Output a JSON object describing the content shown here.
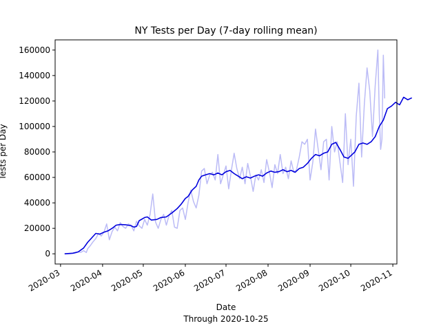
{
  "chart_data": {
    "type": "line",
    "title": "NY Tests per Day (7-day rolling mean)",
    "xlabel": "Date",
    "xlabel_note": "Through 2020-10-25",
    "ylabel": "Tests per Day",
    "xlim": [
      "2020-02-26",
      "2020-11-04"
    ],
    "ylim": [
      -8000,
      168000
    ],
    "x_ticks": [
      "2020-03",
      "2020-04",
      "2020-05",
      "2020-06",
      "2020-07",
      "2020-08",
      "2020-09",
      "2020-10",
      "2020-11"
    ],
    "y_ticks": [
      0,
      20000,
      40000,
      60000,
      80000,
      100000,
      120000,
      140000,
      160000
    ],
    "grid": false,
    "colors": {
      "daily": "#bbbbf6",
      "rolling": "#0000dd"
    },
    "series": [
      {
        "role": "daily",
        "points": [
          [
            "2020-03-04",
            0
          ],
          [
            "2020-03-08",
            100
          ],
          [
            "2020-03-12",
            600
          ],
          [
            "2020-03-14",
            1500
          ],
          [
            "2020-03-16",
            1200
          ],
          [
            "2020-03-18",
            2500
          ],
          [
            "2020-03-20",
            1000
          ],
          [
            "2020-03-21",
            4000
          ],
          [
            "2020-03-23",
            6500
          ],
          [
            "2020-03-25",
            9500
          ],
          [
            "2020-03-27",
            12000
          ],
          [
            "2020-03-29",
            16000
          ],
          [
            "2020-03-31",
            14000
          ],
          [
            "2020-04-02",
            17000
          ],
          [
            "2020-04-04",
            23500
          ],
          [
            "2020-04-06",
            11000
          ],
          [
            "2020-04-08",
            17500
          ],
          [
            "2020-04-10",
            21000
          ],
          [
            "2020-04-12",
            18000
          ],
          [
            "2020-04-14",
            24500
          ],
          [
            "2020-04-16",
            21500
          ],
          [
            "2020-04-18",
            20000
          ],
          [
            "2020-04-20",
            23500
          ],
          [
            "2020-04-22",
            22500
          ],
          [
            "2020-04-24",
            18000
          ],
          [
            "2020-04-26",
            25500
          ],
          [
            "2020-04-28",
            22000
          ],
          [
            "2020-04-30",
            20000
          ],
          [
            "2020-05-02",
            27000
          ],
          [
            "2020-05-04",
            22500
          ],
          [
            "2020-05-06",
            31000
          ],
          [
            "2020-05-08",
            47000
          ],
          [
            "2020-05-10",
            25000
          ],
          [
            "2020-05-12",
            20000
          ],
          [
            "2020-05-14",
            27000
          ],
          [
            "2020-05-16",
            31000
          ],
          [
            "2020-05-18",
            22500
          ],
          [
            "2020-05-20",
            30000
          ],
          [
            "2020-05-22",
            34000
          ],
          [
            "2020-05-24",
            21000
          ],
          [
            "2020-05-26",
            20000
          ],
          [
            "2020-05-28",
            34000
          ],
          [
            "2020-05-30",
            36000
          ],
          [
            "2020-06-01",
            27000
          ],
          [
            "2020-06-03",
            40000
          ],
          [
            "2020-06-05",
            50000
          ],
          [
            "2020-06-07",
            41000
          ],
          [
            "2020-06-09",
            36000
          ],
          [
            "2020-06-11",
            46000
          ],
          [
            "2020-06-13",
            65000
          ],
          [
            "2020-06-15",
            67000
          ],
          [
            "2020-06-17",
            55000
          ],
          [
            "2020-06-19",
            62000
          ],
          [
            "2020-06-21",
            64000
          ],
          [
            "2020-06-23",
            58000
          ],
          [
            "2020-06-25",
            78000
          ],
          [
            "2020-06-27",
            55000
          ],
          [
            "2020-06-29",
            62000
          ],
          [
            "2020-07-01",
            69000
          ],
          [
            "2020-07-03",
            51000
          ],
          [
            "2020-07-05",
            66000
          ],
          [
            "2020-07-07",
            79000
          ],
          [
            "2020-07-09",
            67000
          ],
          [
            "2020-07-11",
            59000
          ],
          [
            "2020-07-13",
            68000
          ],
          [
            "2020-07-15",
            55000
          ],
          [
            "2020-07-17",
            71000
          ],
          [
            "2020-07-19",
            61000
          ],
          [
            "2020-07-21",
            49000
          ],
          [
            "2020-07-23",
            62000
          ],
          [
            "2020-07-25",
            58000
          ],
          [
            "2020-07-27",
            66000
          ],
          [
            "2020-07-29",
            56000
          ],
          [
            "2020-07-31",
            74000
          ],
          [
            "2020-08-02",
            64000
          ],
          [
            "2020-08-04",
            52000
          ],
          [
            "2020-08-06",
            70000
          ],
          [
            "2020-08-08",
            63000
          ],
          [
            "2020-08-10",
            78000
          ],
          [
            "2020-08-12",
            63000
          ],
          [
            "2020-08-14",
            68000
          ],
          [
            "2020-08-16",
            59000
          ],
          [
            "2020-08-18",
            73000
          ],
          [
            "2020-08-20",
            64000
          ],
          [
            "2020-08-22",
            66000
          ],
          [
            "2020-08-24",
            76000
          ],
          [
            "2020-08-26",
            88000
          ],
          [
            "2020-08-28",
            86000
          ],
          [
            "2020-08-30",
            90000
          ],
          [
            "2020-09-01",
            58000
          ],
          [
            "2020-09-03",
            72000
          ],
          [
            "2020-09-05",
            98000
          ],
          [
            "2020-09-07",
            82000
          ],
          [
            "2020-09-09",
            66000
          ],
          [
            "2020-09-11",
            88000
          ],
          [
            "2020-09-13",
            90000
          ],
          [
            "2020-09-15",
            58000
          ],
          [
            "2020-09-17",
            100000
          ],
          [
            "2020-09-19",
            80000
          ],
          [
            "2020-09-21",
            88000
          ],
          [
            "2020-09-23",
            72000
          ],
          [
            "2020-09-25",
            56000
          ],
          [
            "2020-09-27",
            110000
          ],
          [
            "2020-09-29",
            70000
          ],
          [
            "2020-10-01",
            90000
          ],
          [
            "2020-10-03",
            53000
          ],
          [
            "2020-10-05",
            108000
          ],
          [
            "2020-10-07",
            134000
          ],
          [
            "2020-10-09",
            76000
          ],
          [
            "2020-10-11",
            118000
          ],
          [
            "2020-10-13",
            146000
          ],
          [
            "2020-10-15",
            128000
          ],
          [
            "2020-10-17",
            92000
          ],
          [
            "2020-10-19",
            132000
          ],
          [
            "2020-10-21",
            160000
          ],
          [
            "2020-10-22",
            110000
          ],
          [
            "2020-10-23",
            82000
          ],
          [
            "2020-10-24",
            90000
          ],
          [
            "2020-10-25",
            156000
          ],
          [
            "2020-10-26",
            122000
          ]
        ]
      },
      {
        "role": "rolling",
        "points": [
          [
            "2020-03-04",
            0
          ],
          [
            "2020-03-10",
            500
          ],
          [
            "2020-03-14",
            1500
          ],
          [
            "2020-03-18",
            4500
          ],
          [
            "2020-03-21",
            9000
          ],
          [
            "2020-03-24",
            12500
          ],
          [
            "2020-03-27",
            16000
          ],
          [
            "2020-03-30",
            15500
          ],
          [
            "2020-04-02",
            17000
          ],
          [
            "2020-04-05",
            18000
          ],
          [
            "2020-04-08",
            20000
          ],
          [
            "2020-04-11",
            22500
          ],
          [
            "2020-04-14",
            23000
          ],
          [
            "2020-04-18",
            22800
          ],
          [
            "2020-04-22",
            22000
          ],
          [
            "2020-04-24",
            21000
          ],
          [
            "2020-04-26",
            21500
          ],
          [
            "2020-04-28",
            26000
          ],
          [
            "2020-05-02",
            28500
          ],
          [
            "2020-05-04",
            29000
          ],
          [
            "2020-05-07",
            26500
          ],
          [
            "2020-05-11",
            27000
          ],
          [
            "2020-05-14",
            28500
          ],
          [
            "2020-05-18",
            29000
          ],
          [
            "2020-05-22",
            32000
          ],
          [
            "2020-05-26",
            35500
          ],
          [
            "2020-05-29",
            39000
          ],
          [
            "2020-06-01",
            43500
          ],
          [
            "2020-06-03",
            45000
          ],
          [
            "2020-06-06",
            50000
          ],
          [
            "2020-06-09",
            53000
          ],
          [
            "2020-06-11",
            58000
          ],
          [
            "2020-06-13",
            61000
          ],
          [
            "2020-06-16",
            62000
          ],
          [
            "2020-06-19",
            63000
          ],
          [
            "2020-06-22",
            62000
          ],
          [
            "2020-06-25",
            63500
          ],
          [
            "2020-06-28",
            62000
          ],
          [
            "2020-07-01",
            64500
          ],
          [
            "2020-07-04",
            65500
          ],
          [
            "2020-07-07",
            63000
          ],
          [
            "2020-07-10",
            61000
          ],
          [
            "2020-07-13",
            59000
          ],
          [
            "2020-07-16",
            60500
          ],
          [
            "2020-07-19",
            59500
          ],
          [
            "2020-07-22",
            61000
          ],
          [
            "2020-07-25",
            62000
          ],
          [
            "2020-07-28",
            61000
          ],
          [
            "2020-07-31",
            63500
          ],
          [
            "2020-08-03",
            65000
          ],
          [
            "2020-08-06",
            64000
          ],
          [
            "2020-08-09",
            64500
          ],
          [
            "2020-08-12",
            66000
          ],
          [
            "2020-08-15",
            64500
          ],
          [
            "2020-08-18",
            65500
          ],
          [
            "2020-08-21",
            64000
          ],
          [
            "2020-08-24",
            67000
          ],
          [
            "2020-08-27",
            68000
          ],
          [
            "2020-08-30",
            71000
          ],
          [
            "2020-09-02",
            75000
          ],
          [
            "2020-09-05",
            78000
          ],
          [
            "2020-09-08",
            77000
          ],
          [
            "2020-09-11",
            79000
          ],
          [
            "2020-09-14",
            80000
          ],
          [
            "2020-09-17",
            86000
          ],
          [
            "2020-09-20",
            87500
          ],
          [
            "2020-09-23",
            82000
          ],
          [
            "2020-09-26",
            76000
          ],
          [
            "2020-09-29",
            75000
          ],
          [
            "2020-10-01",
            77000
          ],
          [
            "2020-10-04",
            80000
          ],
          [
            "2020-10-07",
            86000
          ],
          [
            "2020-10-10",
            87000
          ],
          [
            "2020-10-13",
            86000
          ],
          [
            "2020-10-16",
            88000
          ],
          [
            "2020-10-19",
            92000
          ],
          [
            "2020-10-22",
            100000
          ],
          [
            "2020-10-25",
            105000
          ],
          [
            "2020-10-28",
            114000
          ],
          [
            "2020-10-31",
            116000
          ],
          [
            "2020-11-03",
            119000
          ],
          [
            "2020-11-06",
            117000
          ],
          [
            "2020-11-09",
            123000
          ],
          [
            "2020-11-12",
            121000
          ],
          [
            "2020-11-15",
            122500
          ]
        ]
      }
    ]
  }
}
